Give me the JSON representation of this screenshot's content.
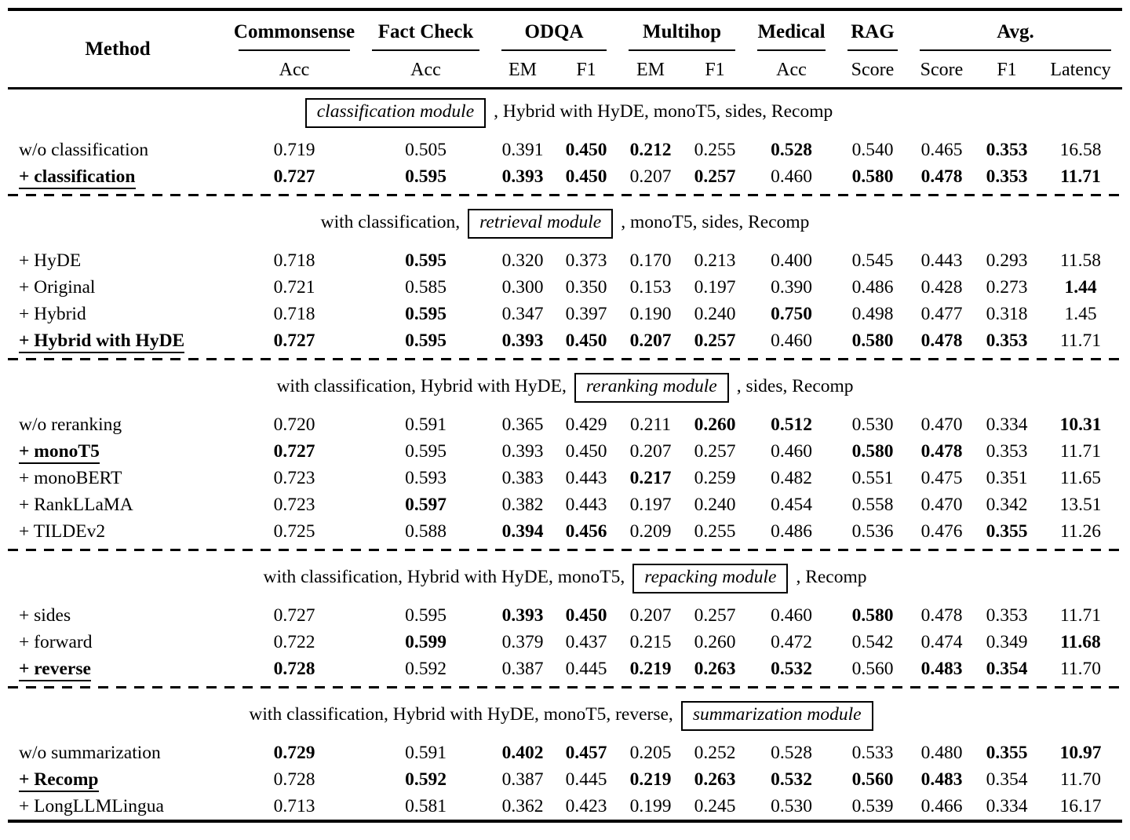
{
  "table": {
    "header": {
      "method": "Method",
      "groups": [
        {
          "label": "Commonsense",
          "span": 1
        },
        {
          "label": "Fact Check",
          "span": 1
        },
        {
          "label": "ODQA",
          "span": 2
        },
        {
          "label": "Multihop",
          "span": 2
        },
        {
          "label": "Medical",
          "span": 1
        },
        {
          "label": "RAG",
          "span": 1
        },
        {
          "label": "Avg.",
          "span": 3
        }
      ],
      "subs": [
        "Acc",
        "Acc",
        "EM",
        "F1",
        "EM",
        "F1",
        "Acc",
        "Score",
        "Score",
        "F1",
        "Latency"
      ]
    },
    "sections": [
      {
        "caption": {
          "pre": "",
          "box": "classification module",
          "post": ", Hybrid with HyDE, monoT5, sides, Recomp"
        },
        "rows": [
          {
            "method": "w/o classification",
            "selected": false,
            "values": [
              "0.719",
              "0.505",
              "0.391",
              "0.450",
              "0.212",
              "0.255",
              "0.528",
              "0.540",
              "0.465",
              "0.353",
              "16.58"
            ],
            "bold": [
              0,
              0,
              0,
              1,
              1,
              0,
              1,
              0,
              0,
              1,
              0
            ]
          },
          {
            "method": "+ classification",
            "selected": true,
            "values": [
              "0.727",
              "0.595",
              "0.393",
              "0.450",
              "0.207",
              "0.257",
              "0.460",
              "0.580",
              "0.478",
              "0.353",
              "11.71"
            ],
            "bold": [
              1,
              1,
              1,
              1,
              0,
              1,
              0,
              1,
              1,
              1,
              1
            ]
          }
        ]
      },
      {
        "caption": {
          "pre": "with classification,",
          "box": "retrieval module",
          "post": ", monoT5, sides, Recomp"
        },
        "rows": [
          {
            "method": "+ HyDE",
            "selected": false,
            "values": [
              "0.718",
              "0.595",
              "0.320",
              "0.373",
              "0.170",
              "0.213",
              "0.400",
              "0.545",
              "0.443",
              "0.293",
              "11.58"
            ],
            "bold": [
              0,
              1,
              0,
              0,
              0,
              0,
              0,
              0,
              0,
              0,
              0
            ]
          },
          {
            "method": "+ Original",
            "selected": false,
            "values": [
              "0.721",
              "0.585",
              "0.300",
              "0.350",
              "0.153",
              "0.197",
              "0.390",
              "0.486",
              "0.428",
              "0.273",
              "1.44"
            ],
            "bold": [
              0,
              0,
              0,
              0,
              0,
              0,
              0,
              0,
              0,
              0,
              1
            ]
          },
          {
            "method": "+ Hybrid",
            "selected": false,
            "values": [
              "0.718",
              "0.595",
              "0.347",
              "0.397",
              "0.190",
              "0.240",
              "0.750",
              "0.498",
              "0.477",
              "0.318",
              "1.45"
            ],
            "bold": [
              0,
              1,
              0,
              0,
              0,
              0,
              1,
              0,
              0,
              0,
              0
            ]
          },
          {
            "method": "+ Hybrid with HyDE",
            "selected": true,
            "values": [
              "0.727",
              "0.595",
              "0.393",
              "0.450",
              "0.207",
              "0.257",
              "0.460",
              "0.580",
              "0.478",
              "0.353",
              "11.71"
            ],
            "bold": [
              1,
              1,
              1,
              1,
              1,
              1,
              0,
              1,
              1,
              1,
              0
            ]
          }
        ]
      },
      {
        "caption": {
          "pre": "with classification, Hybrid with HyDE,",
          "box": "reranking module",
          "post": ", sides, Recomp"
        },
        "rows": [
          {
            "method": "w/o reranking",
            "selected": false,
            "values": [
              "0.720",
              "0.591",
              "0.365",
              "0.429",
              "0.211",
              "0.260",
              "0.512",
              "0.530",
              "0.470",
              "0.334",
              "10.31"
            ],
            "bold": [
              0,
              0,
              0,
              0,
              0,
              1,
              1,
              0,
              0,
              0,
              1
            ]
          },
          {
            "method": "+ monoT5",
            "selected": true,
            "values": [
              "0.727",
              "0.595",
              "0.393",
              "0.450",
              "0.207",
              "0.257",
              "0.460",
              "0.580",
              "0.478",
              "0.353",
              "11.71"
            ],
            "bold": [
              1,
              0,
              0,
              0,
              0,
              0,
              0,
              1,
              1,
              0,
              0
            ]
          },
          {
            "method": "+ monoBERT",
            "selected": false,
            "values": [
              "0.723",
              "0.593",
              "0.383",
              "0.443",
              "0.217",
              "0.259",
              "0.482",
              "0.551",
              "0.475",
              "0.351",
              "11.65"
            ],
            "bold": [
              0,
              0,
              0,
              0,
              1,
              0,
              0,
              0,
              0,
              0,
              0
            ]
          },
          {
            "method": "+ RankLLaMA",
            "selected": false,
            "values": [
              "0.723",
              "0.597",
              "0.382",
              "0.443",
              "0.197",
              "0.240",
              "0.454",
              "0.558",
              "0.470",
              "0.342",
              "13.51"
            ],
            "bold": [
              0,
              1,
              0,
              0,
              0,
              0,
              0,
              0,
              0,
              0,
              0
            ]
          },
          {
            "method": "+ TILDEv2",
            "selected": false,
            "values": [
              "0.725",
              "0.588",
              "0.394",
              "0.456",
              "0.209",
              "0.255",
              "0.486",
              "0.536",
              "0.476",
              "0.355",
              "11.26"
            ],
            "bold": [
              0,
              0,
              1,
              1,
              0,
              0,
              0,
              0,
              0,
              1,
              0
            ]
          }
        ]
      },
      {
        "caption": {
          "pre": "with classification, Hybrid with HyDE, monoT5,",
          "box": "repacking module",
          "post": ", Recomp"
        },
        "rows": [
          {
            "method": "+ sides",
            "selected": false,
            "values": [
              "0.727",
              "0.595",
              "0.393",
              "0.450",
              "0.207",
              "0.257",
              "0.460",
              "0.580",
              "0.478",
              "0.353",
              "11.71"
            ],
            "bold": [
              0,
              0,
              1,
              1,
              0,
              0,
              0,
              1,
              0,
              0,
              0
            ]
          },
          {
            "method": "+ forward",
            "selected": false,
            "values": [
              "0.722",
              "0.599",
              "0.379",
              "0.437",
              "0.215",
              "0.260",
              "0.472",
              "0.542",
              "0.474",
              "0.349",
              "11.68"
            ],
            "bold": [
              0,
              1,
              0,
              0,
              0,
              0,
              0,
              0,
              0,
              0,
              1
            ]
          },
          {
            "method": "+ reverse",
            "selected": true,
            "values": [
              "0.728",
              "0.592",
              "0.387",
              "0.445",
              "0.219",
              "0.263",
              "0.532",
              "0.560",
              "0.483",
              "0.354",
              "11.70"
            ],
            "bold": [
              1,
              0,
              0,
              0,
              1,
              1,
              1,
              0,
              1,
              1,
              0
            ]
          }
        ]
      },
      {
        "caption": {
          "pre": "with classification, Hybrid with HyDE, monoT5, reverse,",
          "box": "summarization module",
          "post": ""
        },
        "rows": [
          {
            "method": "w/o summarization",
            "selected": false,
            "values": [
              "0.729",
              "0.591",
              "0.402",
              "0.457",
              "0.205",
              "0.252",
              "0.528",
              "0.533",
              "0.480",
              "0.355",
              "10.97"
            ],
            "bold": [
              1,
              0,
              1,
              1,
              0,
              0,
              0,
              0,
              0,
              1,
              1
            ]
          },
          {
            "method": "+ Recomp",
            "selected": true,
            "values": [
              "0.728",
              "0.592",
              "0.387",
              "0.445",
              "0.219",
              "0.263",
              "0.532",
              "0.560",
              "0.483",
              "0.354",
              "11.70"
            ],
            "bold": [
              0,
              1,
              0,
              0,
              1,
              1,
              1,
              1,
              1,
              0,
              0
            ]
          },
          {
            "method": "+ LongLLMLingua",
            "selected": false,
            "values": [
              "0.713",
              "0.581",
              "0.362",
              "0.423",
              "0.199",
              "0.245",
              "0.530",
              "0.539",
              "0.466",
              "0.334",
              "16.17"
            ],
            "bold": [
              0,
              0,
              0,
              0,
              0,
              0,
              0,
              0,
              0,
              0,
              0
            ]
          }
        ]
      }
    ]
  }
}
